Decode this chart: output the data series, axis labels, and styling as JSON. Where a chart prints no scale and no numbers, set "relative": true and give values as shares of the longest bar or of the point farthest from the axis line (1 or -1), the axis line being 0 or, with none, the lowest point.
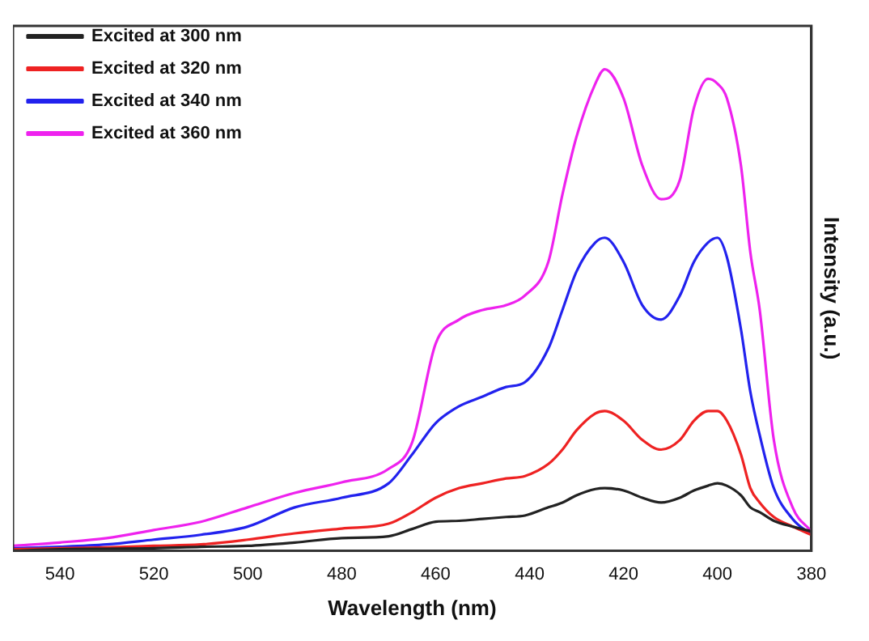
{
  "chart_data": {
    "type": "line",
    "xlabel": "Wavelength (nm)",
    "ylabel": "Intensity (a.u.)",
    "relative": true,
    "xlim": [
      550,
      380
    ],
    "xticks": [
      540,
      520,
      500,
      480,
      460,
      440,
      420,
      400,
      380
    ],
    "legend": "top left",
    "grid": false,
    "marker": "none",
    "line_style": "solid",
    "x": [
      550,
      540,
      530,
      520,
      510,
      500,
      490,
      480,
      470,
      465,
      460,
      455,
      450,
      445,
      441,
      436,
      433,
      430,
      426,
      424,
      420,
      416,
      412,
      408,
      405,
      402,
      400,
      398,
      395,
      393,
      391,
      388,
      384,
      380
    ],
    "series": [
      {
        "name": "Excited at 300 nm",
        "color": "#222222",
        "values": [
          0,
          0.003,
          0.004,
          0.005,
          0.008,
          0.01,
          0.017,
          0.026,
          0.03,
          0.045,
          0.06,
          0.062,
          0.066,
          0.07,
          0.073,
          0.09,
          0.1,
          0.115,
          0.128,
          0.13,
          0.125,
          0.11,
          0.1,
          0.11,
          0.125,
          0.135,
          0.14,
          0.135,
          0.115,
          0.09,
          0.08,
          0.062,
          0.05,
          0.04
        ]
      },
      {
        "name": "Excited at 320 nm",
        "color": "#ee2222",
        "values": [
          0.003,
          0.005,
          0.007,
          0.01,
          0.013,
          0.023,
          0.036,
          0.046,
          0.056,
          0.08,
          0.11,
          0.13,
          0.14,
          0.15,
          0.155,
          0.18,
          0.21,
          0.25,
          0.285,
          0.29,
          0.27,
          0.23,
          0.21,
          0.23,
          0.27,
          0.29,
          0.29,
          0.27,
          0.2,
          0.13,
          0.1,
          0.07,
          0.05,
          0.033
        ]
      },
      {
        "name": "Excited at 340 nm",
        "color": "#2222ee",
        "values": [
          0.005,
          0.008,
          0.013,
          0.023,
          0.033,
          0.05,
          0.09,
          0.11,
          0.14,
          0.2,
          0.265,
          0.3,
          0.32,
          0.34,
          0.35,
          0.42,
          0.5,
          0.58,
          0.64,
          0.65,
          0.6,
          0.51,
          0.48,
          0.53,
          0.6,
          0.64,
          0.65,
          0.61,
          0.46,
          0.33,
          0.24,
          0.13,
          0.066,
          0.033
        ]
      },
      {
        "name": "Excited at 360 nm",
        "color": "#ee22ee",
        "values": [
          0.01,
          0.017,
          0.026,
          0.043,
          0.06,
          0.09,
          0.12,
          0.142,
          0.17,
          0.225,
          0.43,
          0.48,
          0.5,
          0.51,
          0.53,
          0.6,
          0.74,
          0.86,
          0.97,
          1.0,
          0.94,
          0.8,
          0.73,
          0.77,
          0.92,
          0.98,
          0.97,
          0.94,
          0.8,
          0.62,
          0.5,
          0.23,
          0.09,
          0.04
        ]
      }
    ]
  }
}
